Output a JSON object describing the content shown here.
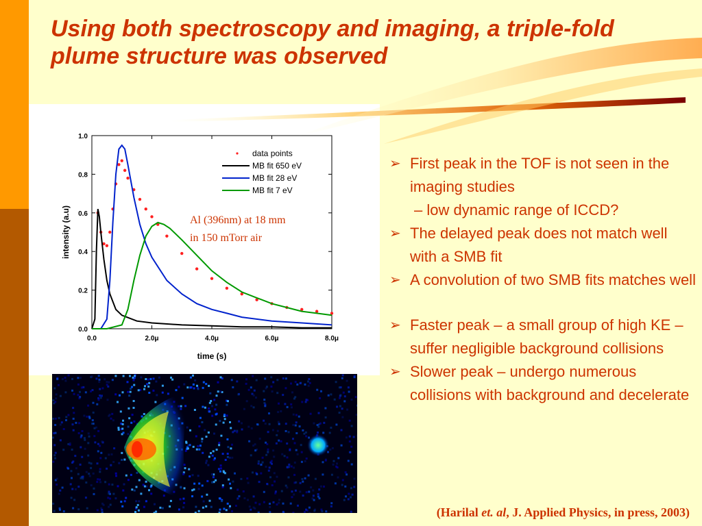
{
  "slide": {
    "title": "Using both spectroscopy and imaging, a triple-fold plume structure was observed",
    "colors": {
      "accent": "#cc3300",
      "background": "#ffffcc",
      "bar_top": "#ff9900",
      "bar_bottom": "#b35900"
    }
  },
  "chart_data": {
    "type": "line",
    "title": "",
    "xlabel": "time (s)",
    "ylabel": "intensity (a.u)",
    "xlim": [
      0,
      8.0
    ],
    "ylim": [
      0,
      1.0
    ],
    "x_unit": "μs",
    "x_ticks": [
      "0.0",
      "2.0μ",
      "4.0μ",
      "6.0μ",
      "8.0μ"
    ],
    "y_ticks": [
      "0.0",
      "0.2",
      "0.4",
      "0.6",
      "0.8",
      "1.0"
    ],
    "legend_position": "top-right",
    "grid": false,
    "annotation": [
      "Al (396nm) at 18 mm",
      "in 150 mTorr air"
    ],
    "series": [
      {
        "name": "data points",
        "style": "scatter",
        "color": "#ff2020",
        "x": [
          0.2,
          0.3,
          0.4,
          0.5,
          0.6,
          0.7,
          0.8,
          0.9,
          1.0,
          1.1,
          1.2,
          1.4,
          1.6,
          1.8,
          2.0,
          2.2,
          2.5,
          3.0,
          3.5,
          4.0,
          4.5,
          5.0,
          5.5,
          6.0,
          6.5,
          7.0,
          7.5,
          8.0
        ],
        "y": [
          0.6,
          0.5,
          0.44,
          0.43,
          0.5,
          0.62,
          0.75,
          0.85,
          0.87,
          0.82,
          0.78,
          0.72,
          0.67,
          0.62,
          0.58,
          0.54,
          0.48,
          0.39,
          0.31,
          0.26,
          0.21,
          0.18,
          0.15,
          0.13,
          0.11,
          0.1,
          0.09,
          0.08
        ]
      },
      {
        "name": "MB fit 650 eV",
        "style": "line",
        "color": "#000000",
        "x": [
          0.0,
          0.1,
          0.15,
          0.2,
          0.25,
          0.3,
          0.4,
          0.5,
          0.6,
          0.8,
          1.0,
          1.5,
          2.0,
          3.0,
          4.0,
          5.0,
          6.0,
          7.0,
          8.0
        ],
        "y": [
          0.0,
          0.05,
          0.4,
          0.62,
          0.58,
          0.5,
          0.36,
          0.25,
          0.18,
          0.1,
          0.07,
          0.04,
          0.03,
          0.02,
          0.015,
          0.01,
          0.01,
          0.005,
          0.005
        ]
      },
      {
        "name": "MB fit 28 eV",
        "style": "line",
        "color": "#0022cc",
        "x": [
          0.0,
          0.3,
          0.5,
          0.6,
          0.7,
          0.8,
          0.9,
          1.0,
          1.1,
          1.2,
          1.4,
          1.6,
          1.8,
          2.0,
          2.5,
          3.0,
          3.5,
          4.0,
          4.5,
          5.0,
          6.0,
          7.0,
          8.0
        ],
        "y": [
          0.0,
          0.0,
          0.05,
          0.25,
          0.55,
          0.8,
          0.93,
          0.95,
          0.93,
          0.85,
          0.68,
          0.54,
          0.44,
          0.37,
          0.25,
          0.18,
          0.13,
          0.1,
          0.08,
          0.06,
          0.04,
          0.03,
          0.02
        ]
      },
      {
        "name": "MB fit 7 eV",
        "style": "line",
        "color": "#009900",
        "x": [
          0.0,
          0.5,
          1.0,
          1.2,
          1.4,
          1.6,
          1.8,
          2.0,
          2.2,
          2.4,
          2.6,
          3.0,
          3.5,
          4.0,
          4.5,
          5.0,
          5.5,
          6.0,
          6.5,
          7.0,
          7.5,
          8.0
        ],
        "y": [
          0.0,
          0.0,
          0.02,
          0.1,
          0.25,
          0.38,
          0.48,
          0.53,
          0.55,
          0.54,
          0.52,
          0.46,
          0.38,
          0.3,
          0.24,
          0.19,
          0.16,
          0.13,
          0.11,
          0.09,
          0.08,
          0.07
        ]
      }
    ]
  },
  "image": {
    "subject": "ICCD plume image"
  },
  "bullets": [
    {
      "text": "First peak in the TOF is not seen in the imaging studies"
    },
    {
      "text": "– low dynamic range of ICCD?",
      "sub": true
    },
    {
      "text": "The delayed peak does not match well with a SMB fit"
    },
    {
      "text": "A convolution of two SMB fits matches well"
    },
    {
      "gap": true
    },
    {
      "text": "Faster peak – a small group of high KE – suffer negligible background collisions"
    },
    {
      "text": "Slower peak – undergo numerous collisions with background and decelerate"
    }
  ],
  "citation": {
    "open": "(Harilal ",
    "etal": "et. al",
    "rest": ", J. Applied Physics, in press, 2003)"
  }
}
